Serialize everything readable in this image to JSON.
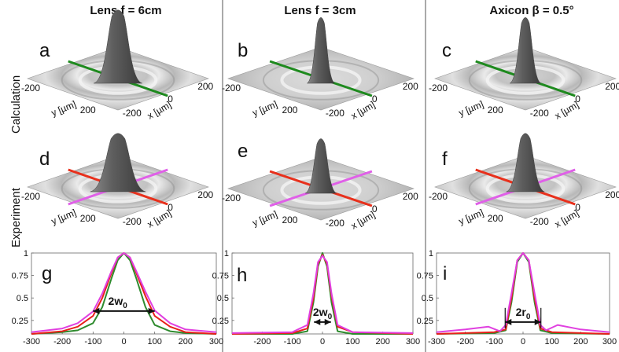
{
  "columns": [
    "Lens f = 6cm",
    "Lens f = 3cm",
    "Axicon β = 0.5°"
  ],
  "rows": [
    "Calculation",
    "Experiment"
  ],
  "panels": {
    "a": "a",
    "b": "b",
    "c": "c",
    "d": "d",
    "e": "e",
    "f": "f",
    "g": "g",
    "h": "h",
    "i": "i"
  },
  "surface_axes": {
    "y_label": "y [µm]",
    "x_label": "x [µm]",
    "y_ticks": [
      "-200",
      "200"
    ],
    "x_ticks": [
      "200",
      "0",
      "-200"
    ]
  },
  "chart_data": [
    {
      "type": "line",
      "panel": "g",
      "xlim": [
        -300,
        300
      ],
      "ylim": [
        0.1,
        1
      ],
      "x_ticks": [
        -300,
        -200,
        -100,
        0,
        100,
        200,
        300
      ],
      "y_ticks": [
        1,
        0.75,
        0.5,
        0.25
      ],
      "annotation": "2w",
      "annotation_sub": "0",
      "series": [
        {
          "color": "#2e8b2e",
          "x": [
            -300,
            -200,
            -150,
            -100,
            -70,
            -40,
            -20,
            0,
            20,
            40,
            70,
            100,
            150,
            200,
            300
          ],
          "y": [
            0.1,
            0.12,
            0.14,
            0.22,
            0.4,
            0.72,
            0.92,
            1,
            0.92,
            0.72,
            0.4,
            0.2,
            0.13,
            0.11,
            0.1
          ]
        },
        {
          "color": "#e8201a",
          "x": [
            -300,
            -200,
            -150,
            -100,
            -70,
            -40,
            -20,
            0,
            20,
            40,
            70,
            100,
            150,
            200,
            300
          ],
          "y": [
            0.1,
            0.13,
            0.18,
            0.3,
            0.5,
            0.78,
            0.95,
            1,
            0.95,
            0.78,
            0.52,
            0.3,
            0.18,
            0.12,
            0.1
          ]
        },
        {
          "color": "#e040e0",
          "x": [
            -300,
            -200,
            -150,
            -100,
            -70,
            -40,
            -20,
            0,
            20,
            40,
            70,
            100,
            150,
            200,
            300
          ],
          "y": [
            0.12,
            0.16,
            0.22,
            0.35,
            0.55,
            0.8,
            0.95,
            1,
            0.95,
            0.8,
            0.57,
            0.36,
            0.22,
            0.15,
            0.12
          ]
        }
      ]
    },
    {
      "type": "line",
      "panel": "h",
      "xlim": [
        -300,
        300
      ],
      "ylim": [
        0.1,
        1
      ],
      "x_ticks": [
        -200,
        -100,
        0,
        100,
        200,
        300
      ],
      "y_ticks": [
        1,
        0.75,
        0.5,
        0.25
      ],
      "annotation": "2w",
      "annotation_sub": "0",
      "series": [
        {
          "color": "#2e8b2e",
          "x": [
            -300,
            -100,
            -50,
            -30,
            -15,
            0,
            15,
            30,
            50,
            100,
            300
          ],
          "y": [
            0.1,
            0.1,
            0.13,
            0.45,
            0.85,
            1,
            0.85,
            0.45,
            0.13,
            0.1,
            0.1
          ]
        },
        {
          "color": "#e8201a",
          "x": [
            -300,
            -100,
            -50,
            -30,
            -15,
            0,
            15,
            30,
            50,
            100,
            300
          ],
          "y": [
            0.1,
            0.11,
            0.16,
            0.5,
            0.88,
            0.98,
            0.88,
            0.52,
            0.18,
            0.12,
            0.1
          ]
        },
        {
          "color": "#e040e0",
          "x": [
            -300,
            -100,
            -50,
            -30,
            -15,
            0,
            15,
            30,
            50,
            100,
            300
          ],
          "y": [
            0.11,
            0.12,
            0.2,
            0.55,
            0.9,
            0.97,
            0.9,
            0.55,
            0.2,
            0.12,
            0.11
          ]
        }
      ]
    },
    {
      "type": "line",
      "panel": "i",
      "xlim": [
        -300,
        300
      ],
      "ylim": [
        0.1,
        1
      ],
      "x_ticks": [
        -300,
        -200,
        -100,
        0,
        100,
        200,
        300
      ],
      "y_ticks": [
        1,
        0.75,
        0.5,
        0.25
      ],
      "annotation": "2r",
      "annotation_sub": "0",
      "series": [
        {
          "color": "#2e8b2e",
          "x": [
            -300,
            -100,
            -60,
            -40,
            -20,
            0,
            20,
            40,
            60,
            100,
            300
          ],
          "y": [
            0.1,
            0.11,
            0.14,
            0.45,
            0.9,
            1,
            0.9,
            0.45,
            0.14,
            0.11,
            0.1
          ]
        },
        {
          "color": "#e8201a",
          "x": [
            -300,
            -100,
            -60,
            -40,
            -20,
            0,
            20,
            40,
            60,
            100,
            300
          ],
          "y": [
            0.1,
            0.12,
            0.15,
            0.5,
            0.92,
            1,
            0.92,
            0.5,
            0.16,
            0.12,
            0.1
          ]
        },
        {
          "color": "#e040e0",
          "x": [
            -300,
            -200,
            -120,
            -80,
            -60,
            -40,
            -20,
            0,
            20,
            40,
            60,
            80,
            120,
            200,
            300
          ],
          "y": [
            0.12,
            0.15,
            0.18,
            0.13,
            0.2,
            0.55,
            0.92,
            1,
            0.92,
            0.55,
            0.2,
            0.14,
            0.2,
            0.15,
            0.12
          ]
        }
      ]
    }
  ],
  "colors": {
    "calc_cut": "#1e8a1e",
    "exp_cut_a": "#e8301c",
    "exp_cut_b": "#e060e8"
  }
}
